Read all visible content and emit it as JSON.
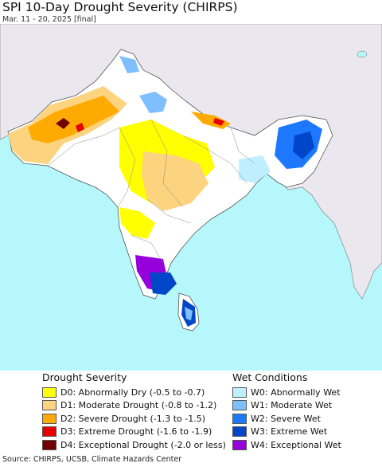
{
  "title": "SPI 10-Day Drought Severity (CHIRPS)",
  "subtitle": "Mar. 11 - 20, 2025 [final]",
  "source": "Source: CHIRPS, UCSB, Climate Hazards Center",
  "colors": {
    "water": "#b5f7fb",
    "land_outside": "#eae8ee",
    "land_region": "#ffffff",
    "border": "#555555"
  },
  "legend": {
    "drought": {
      "heading": "Drought Severity",
      "items": [
        {
          "label": "D0: Abnormally Dry (-0.5 to -0.7)",
          "color": "#ffff00"
        },
        {
          "label": "D1: Moderate Drought (-0.8 to -1.2)",
          "color": "#fcd37f"
        },
        {
          "label": "D2: Severe Drought (-1.3 to -1.5)",
          "color": "#ffaa00"
        },
        {
          "label": "D3: Extreme Drought (-1.6 to -1.9)",
          "color": "#e60000"
        },
        {
          "label": "D4: Exceptional Drought (-2.0 or less)",
          "color": "#730000"
        }
      ]
    },
    "wet": {
      "heading": "Wet Conditions",
      "items": [
        {
          "label": "W0: Abnormally Wet",
          "color": "#bfefff"
        },
        {
          "label": "W1: Moderate Wet",
          "color": "#7fbfff"
        },
        {
          "label": "W2: Severe Wet",
          "color": "#1e78ff"
        },
        {
          "label": "W3: Extreme Wet",
          "color": "#0046c8"
        },
        {
          "label": "W4: Exceptional Wet",
          "color": "#9600dc"
        }
      ]
    }
  }
}
